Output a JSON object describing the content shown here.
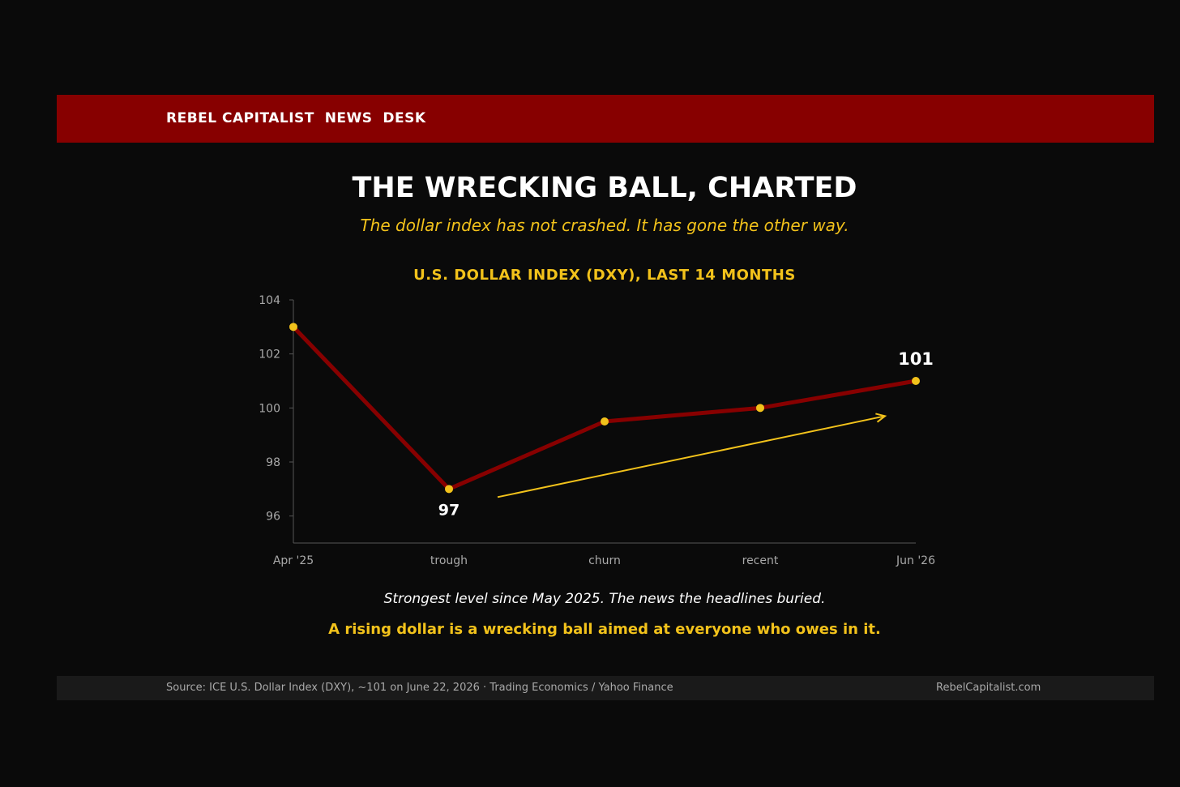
{
  "banner": {
    "title": "REBEL CAPITALIST  NEWS  DESK"
  },
  "headline": "THE WRECKING BALL, CHARTED",
  "subheadline": "The dollar index has not crashed. It has gone the other way.",
  "chart_title": "U.S. DOLLAR INDEX (DXY), LAST 14 MONTHS",
  "chart_data": {
    "type": "line",
    "title": "U.S. DOLLAR INDEX (DXY), LAST 14 MONTHS",
    "xlabel": "",
    "ylabel": "",
    "categories": [
      "Apr '25",
      "trough",
      "churn",
      "recent",
      "Jun '26"
    ],
    "series": [
      {
        "values": [
          103,
          97,
          99.5,
          100,
          101
        ],
        "color": "#870000"
      }
    ],
    "ylim": [
      95,
      104
    ],
    "yticks": [
      96,
      98,
      100,
      102,
      104
    ],
    "annotations": [
      {
        "category": "trough",
        "text": "97"
      },
      {
        "category": "Jun '26",
        "text": "101"
      }
    ],
    "trend_arrow": {
      "color": "#f2c21b",
      "direction": "up"
    },
    "marker_color": "#f2c21b",
    "grid": false,
    "legend": "none"
  },
  "caption": "Strongest level since May 2025. The news the headlines buried.",
  "kicker": "A rising dollar is a wrecking ball aimed at everyone who owes in it.",
  "footer": {
    "source": "Source: ICE U.S. Dollar Index (DXY), ~101 on June 22, 2026 · Trading Economics / Yahoo Finance",
    "site": "RebelCapitalist.com"
  }
}
